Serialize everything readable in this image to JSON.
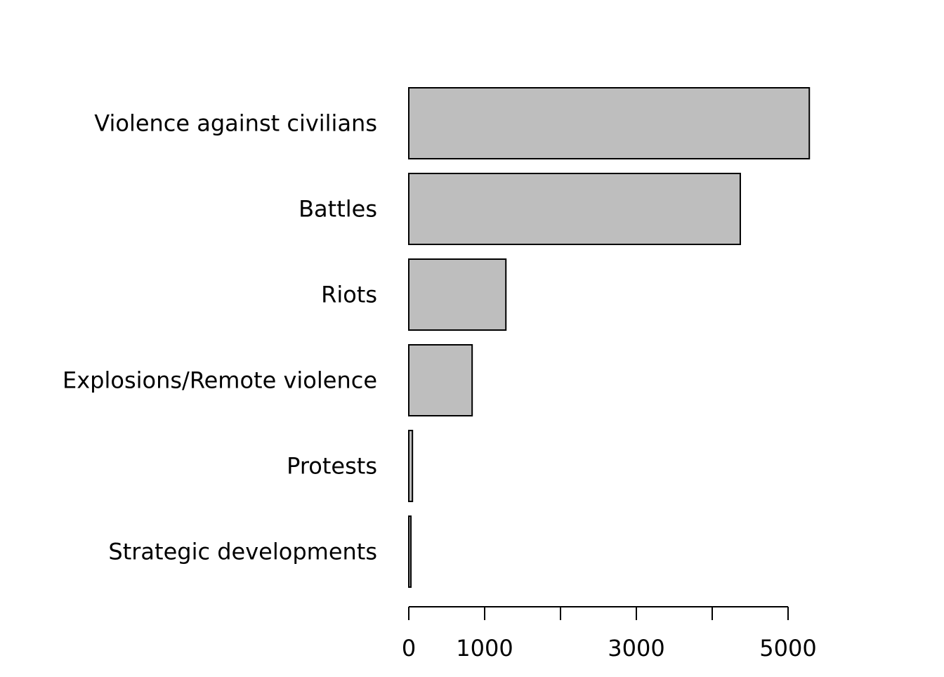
{
  "chart_data": {
    "type": "bar",
    "orientation": "horizontal",
    "title": "",
    "xlabel": "",
    "ylabel": "",
    "categories": [
      "Violence against civilians",
      "Battles",
      "Riots",
      "Explosions/Remote violence",
      "Protests",
      "Strategic developments"
    ],
    "values": [
      5280,
      4370,
      1280,
      835,
      48,
      28
    ],
    "xlim": [
      0,
      5000
    ],
    "x_ticks": [
      0,
      1000,
      2000,
      3000,
      4000,
      5000
    ],
    "x_tick_labels": [
      "0",
      "1000",
      "",
      "3000",
      "",
      "5000"
    ],
    "grid": false,
    "bar_fill": "#bebebe",
    "bar_stroke": "#000000"
  }
}
